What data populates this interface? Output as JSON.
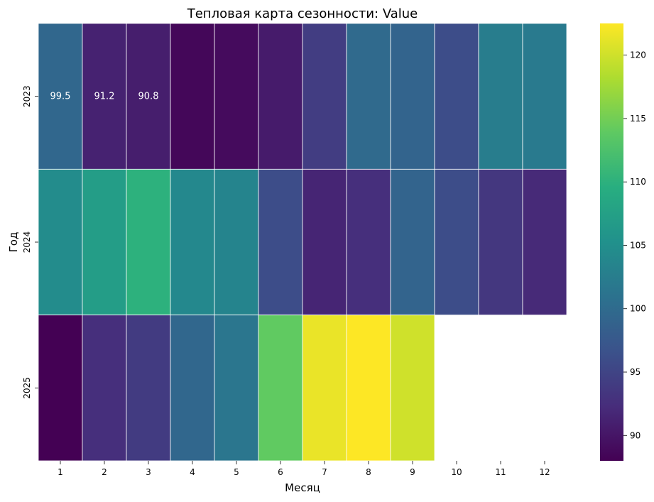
{
  "chart_data": {
    "type": "heatmap",
    "title": "Тепловая карта сезонности: Value",
    "xlabel": "Месяц",
    "ylabel": "Год",
    "x": [
      "1",
      "2",
      "3",
      "4",
      "5",
      "6",
      "7",
      "8",
      "9",
      "10",
      "11",
      "12"
    ],
    "y": [
      "2023",
      "2024",
      "2025"
    ],
    "z": [
      [
        99.5,
        91.2,
        90.8,
        88.6,
        89.0,
        90.5,
        94.2,
        99.8,
        99.0,
        96.0,
        102.5,
        102.0
      ],
      [
        104.5,
        107.0,
        110.0,
        104.0,
        103.5,
        96.0,
        91.5,
        92.5,
        99.0,
        96.0,
        93.5,
        92.0
      ],
      [
        88.0,
        92.5,
        94.0,
        99.5,
        101.5,
        114.0,
        121.5,
        122.5,
        120.0,
        null,
        null,
        null
      ]
    ],
    "annotations": [
      {
        "row": 0,
        "col": 0,
        "text": "99.5"
      },
      {
        "row": 0,
        "col": 1,
        "text": "91.2"
      },
      {
        "row": 0,
        "col": 2,
        "text": "90.8"
      }
    ],
    "colorbar": {
      "range": [
        88.0,
        122.5
      ],
      "ticks": [
        "90",
        "95",
        "100",
        "105",
        "110",
        "115",
        "120"
      ],
      "colormap": "viridis"
    },
    "grid": false
  }
}
